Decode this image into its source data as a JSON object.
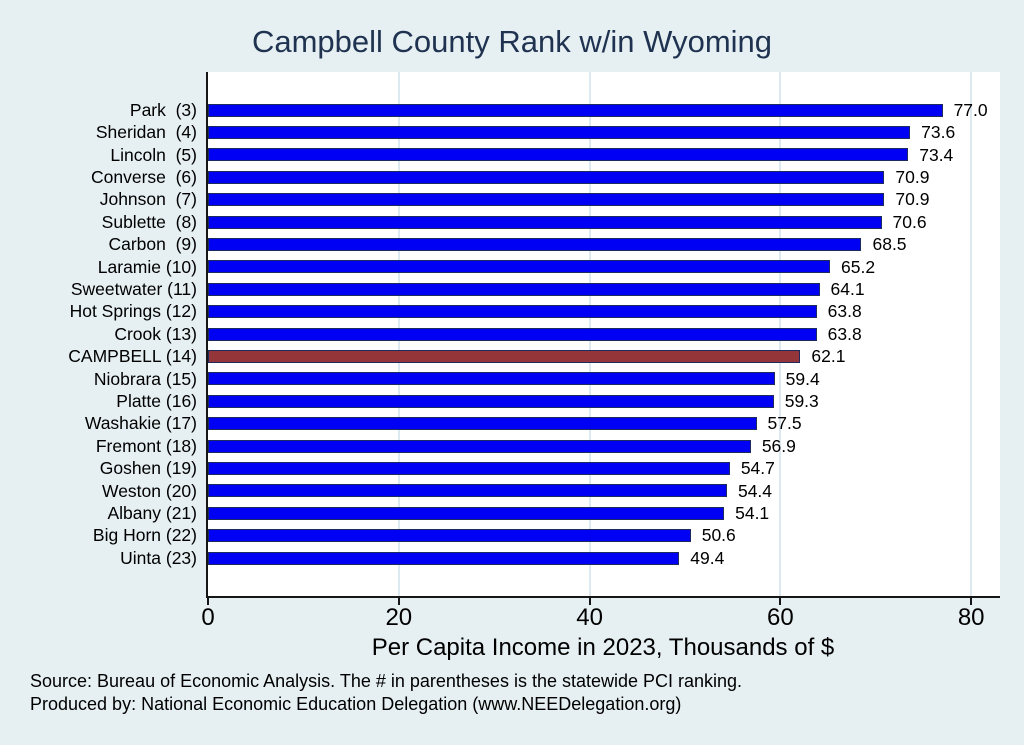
{
  "chart_data": {
    "type": "bar",
    "orientation": "horizontal",
    "title": "Campbell County Rank w/in Wyoming",
    "categories": [
      "Park  (3)",
      "Sheridan  (4)",
      "Lincoln  (5)",
      "Converse  (6)",
      "Johnson  (7)",
      "Sublette  (8)",
      "Carbon  (9)",
      "Laramie (10)",
      "Sweetwater (11)",
      "Hot Springs (12)",
      "Crook (13)",
      "CAMPBELL (14)",
      "Niobrara (15)",
      "Platte (16)",
      "Washakie (17)",
      "Fremont (18)",
      "Goshen (19)",
      "Weston (20)",
      "Albany (21)",
      "Big Horn (22)",
      "Uinta (23)"
    ],
    "values": [
      77.0,
      73.6,
      73.4,
      70.9,
      70.9,
      70.6,
      68.5,
      65.2,
      64.1,
      63.8,
      63.8,
      62.1,
      59.4,
      59.3,
      57.5,
      56.9,
      54.7,
      54.4,
      54.1,
      50.6,
      49.4
    ],
    "value_labels": [
      "77.0",
      "73.6",
      "73.4",
      "70.9",
      "70.9",
      "70.6",
      "68.5",
      "65.2",
      "64.1",
      "63.8",
      "63.8",
      "62.1",
      "59.4",
      "59.3",
      "57.5",
      "56.9",
      "54.7",
      "54.4",
      "54.1",
      "50.6",
      "49.4"
    ],
    "xlabel": "Per Capita Income in 2023, Thousands of $",
    "xlim": [
      0,
      80
    ],
    "xticks": [
      "0",
      "20",
      "40",
      "60",
      "80"
    ],
    "xtick_values": [
      0,
      20,
      40,
      60,
      80
    ],
    "gridlines_at": [
      20,
      40,
      60,
      80
    ],
    "legend": "none",
    "bar_color": "#0000f5",
    "highlight_index": 11,
    "highlight_color": "#943539",
    "highlight_category": "CAMPBELL (14)"
  },
  "footer": {
    "line1": "Source: Bureau of Economic Analysis. The # in parentheses is the statewide PCI ranking.",
    "line2": "Produced by: National Economic Education Delegation (www.NEEDelegation.org)"
  },
  "colors": {
    "background": "#e6eff2",
    "plot_background": "#ffffff",
    "title_color": "#1f3350",
    "axis_color": "#161616",
    "gridline_color": "#dde9f1",
    "bar_outline": "#1c2a5e"
  }
}
